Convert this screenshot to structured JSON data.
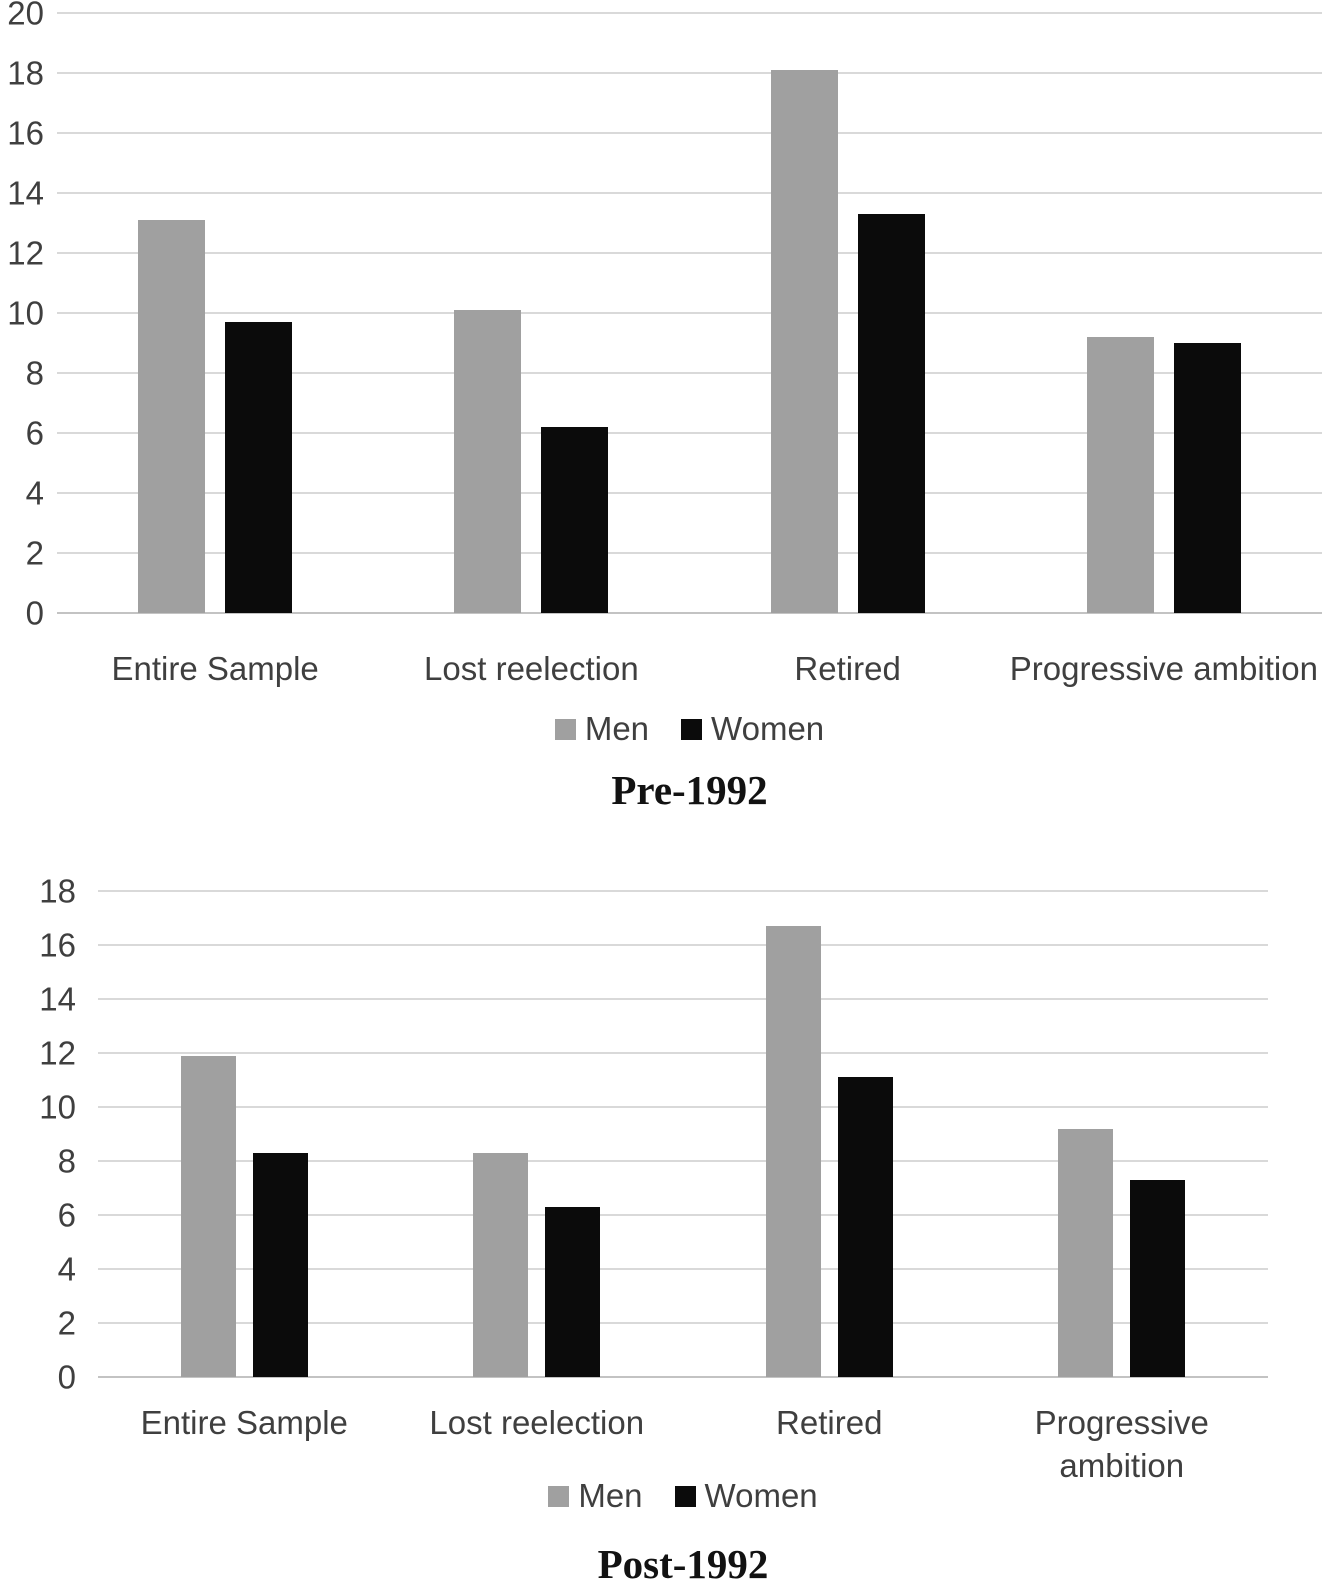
{
  "colors": {
    "men_series": "#a0a0a0",
    "women_series": "#0b0b0b",
    "gridline": "#d9d9d9",
    "axis_line": "#c3c3c3",
    "axis_text": "#3f3f3f",
    "title_text": "#121212"
  },
  "chart_data": [
    {
      "type": "bar",
      "title": "Pre-1992",
      "categories": [
        "Entire Sample",
        "Lost reelection",
        "Retired",
        "Progressive ambition"
      ],
      "series": [
        {
          "name": "Men",
          "color": "#a0a0a0",
          "values": [
            13.1,
            10.1,
            18.1,
            9.2
          ]
        },
        {
          "name": "Women",
          "color": "#0b0b0b",
          "values": [
            9.7,
            6.2,
            13.3,
            9.0
          ]
        }
      ],
      "xlabel": "",
      "ylabel": "",
      "ylim": [
        0,
        20
      ],
      "ytick_step": 2,
      "ytick_labels": [
        "0",
        "2",
        "4",
        "6",
        "8",
        "10",
        "12",
        "14",
        "16",
        "18",
        "20"
      ],
      "grid": true,
      "legend_position": "bottom"
    },
    {
      "type": "bar",
      "title": "Post-1992",
      "categories": [
        "Entire Sample",
        "Lost reelection",
        "Retired",
        "Progressive ambition"
      ],
      "series": [
        {
          "name": "Men",
          "color": "#a0a0a0",
          "values": [
            11.9,
            8.3,
            16.7,
            9.2
          ]
        },
        {
          "name": "Women",
          "color": "#0b0b0b",
          "values": [
            8.3,
            6.3,
            11.1,
            7.3
          ]
        }
      ],
      "xlabel": "",
      "ylabel": "",
      "ylim": [
        0,
        18
      ],
      "ytick_step": 2,
      "ytick_labels": [
        "0",
        "2",
        "4",
        "6",
        "8",
        "10",
        "12",
        "14",
        "16",
        "18"
      ],
      "grid": true,
      "legend_position": "bottom"
    }
  ]
}
